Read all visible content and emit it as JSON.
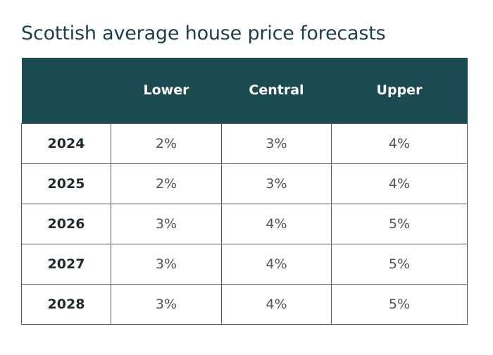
{
  "title": "Scottish average house price forecasts",
  "table": {
    "headers": [
      "",
      "Lower",
      "Central",
      "Upper"
    ],
    "rows": [
      {
        "year": "2024",
        "lower": "2%",
        "central": "3%",
        "upper": "4%"
      },
      {
        "year": "2025",
        "lower": "2%",
        "central": "3%",
        "upper": "4%"
      },
      {
        "year": "2026",
        "lower": "3%",
        "central": "4%",
        "upper": "5%"
      },
      {
        "year": "2027",
        "lower": "3%",
        "central": "4%",
        "upper": "5%"
      },
      {
        "year": "2028",
        "lower": "3%",
        "central": "4%",
        "upper": "5%"
      }
    ]
  },
  "colors": {
    "header_background": "#1c4a52",
    "title_text": "#1c3d47",
    "border": "#555a5c"
  }
}
